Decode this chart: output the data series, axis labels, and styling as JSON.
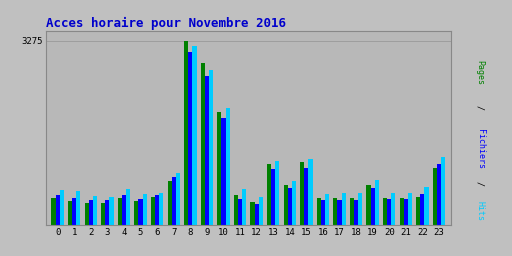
{
  "title": "Acces horaire pour Novembre 2016",
  "title_color": "#0000cc",
  "title_fontsize": 9,
  "background_color": "#c0c0c0",
  "plot_bg_color": "#b8b8b8",
  "ytick_label": "3275",
  "ytick_value": 3275,
  "hours": [
    0,
    1,
    2,
    3,
    4,
    5,
    6,
    7,
    8,
    9,
    10,
    11,
    12,
    13,
    14,
    15,
    16,
    17,
    18,
    19,
    20,
    21,
    22,
    23
  ],
  "pages": [
    480,
    430,
    390,
    400,
    490,
    430,
    510,
    780,
    3275,
    2880,
    2000,
    530,
    420,
    1080,
    720,
    1120,
    480,
    490,
    490,
    720,
    490,
    490,
    500,
    1020
  ],
  "fichiers": [
    530,
    480,
    440,
    440,
    540,
    470,
    540,
    850,
    3080,
    2650,
    1900,
    470,
    380,
    990,
    660,
    1020,
    440,
    450,
    450,
    660,
    460,
    460,
    560,
    1090
  ],
  "hits": [
    620,
    610,
    520,
    510,
    640,
    560,
    580,
    920,
    3180,
    2750,
    2080,
    640,
    510,
    1140,
    790,
    1180,
    560,
    580,
    570,
    800,
    570,
    570,
    680,
    1210
  ],
  "bar_width": 0.25,
  "pages_color": "#008000",
  "fichiers_color": "#0000ff",
  "hits_color": "#00ccff",
  "ylim": [
    0,
    3450
  ],
  "ylabel_right": "Pages / Fichiers / Hits",
  "fontfamily": "monospace"
}
